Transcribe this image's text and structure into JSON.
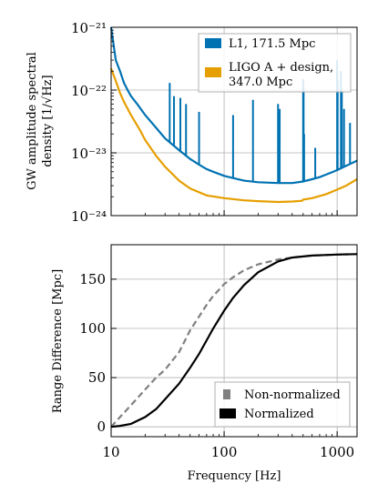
{
  "chart_data": [
    {
      "type": "line",
      "xlabel": "",
      "ylabel_lines": [
        "GW amplitude spectral",
        "density [1/√Hz]"
      ],
      "xscale": "log",
      "yscale": "log",
      "xlim": [
        10,
        1500
      ],
      "ylim": [
        1e-24,
        1e-21
      ],
      "grid": true,
      "legend_placement": "top-right",
      "y_ticks": [
        1e-24,
        1e-23,
        1e-22,
        1e-21
      ],
      "y_tick_labels": [
        "10⁻²⁴",
        "10⁻²³",
        "10⁻²²",
        "10⁻²¹"
      ],
      "series": [
        {
          "name": "L1, 171.5 Mpc",
          "color": "#0072b2",
          "x": [
            10,
            11,
            12,
            13,
            14,
            15,
            17,
            20,
            25,
            30,
            40,
            50,
            60,
            70,
            80,
            100,
            150,
            200,
            300,
            400,
            500,
            600,
            700,
            800,
            1000,
            1200,
            1500
          ],
          "y": [
            1e-21,
            3e-22,
            2e-22,
            1.3e-22,
            1e-22,
            8e-23,
            6e-23,
            4e-23,
            2.5e-23,
            1.7e-23,
            1.1e-23,
            8e-24,
            6.5e-24,
            5.5e-24,
            5e-24,
            4.3e-24,
            3.6e-24,
            3.4e-24,
            3.3e-24,
            3.3e-24,
            3.5e-24,
            3.8e-24,
            4.1e-24,
            4.5e-24,
            5.3e-24,
            6.2e-24,
            7.5e-24
          ],
          "lines": [
            [
              33,
              1.3e-22
            ],
            [
              36,
              8e-23
            ],
            [
              41,
              7.5e-23
            ],
            [
              46,
              6e-23
            ],
            [
              60,
              4.5e-23
            ],
            [
              120,
              4e-23
            ],
            [
              180,
              7e-23
            ],
            [
              300,
              6e-23
            ],
            [
              310,
              5e-23
            ],
            [
              500,
              1.5e-22
            ],
            [
              505,
              1.1e-22
            ],
            [
              510,
              2e-23
            ],
            [
              640,
              1.2e-23
            ],
            [
              1000,
              3e-22
            ],
            [
              1010,
              1.5e-22
            ],
            [
              1080,
              2e-22
            ],
            [
              1100,
              1e-22
            ],
            [
              1150,
              5e-23
            ],
            [
              1300,
              3e-23
            ]
          ]
        },
        {
          "name": "LIGO A + design,",
          "name_line2": "347.0 Mpc",
          "color": "#e69f00",
          "x": [
            10,
            11,
            12,
            13,
            15,
            18,
            20,
            25,
            30,
            40,
            50,
            70,
            100,
            150,
            200,
            300,
            400,
            490,
            500,
            600,
            800,
            1000,
            1200,
            1500
          ],
          "y": [
            2.2e-22,
            1.4e-22,
            9e-23,
            6.5e-23,
            4e-23,
            2.3e-23,
            1.6e-23,
            9e-24,
            6e-24,
            3.6e-24,
            2.7e-24,
            2.1e-24,
            1.9e-24,
            1.75e-24,
            1.7e-24,
            1.65e-24,
            1.68e-24,
            1.72e-24,
            1.8e-24,
            1.9e-24,
            2.2e-24,
            2.6e-24,
            3e-24,
            3.8e-24
          ]
        }
      ]
    },
    {
      "type": "line",
      "xlabel": "Frequency [Hz]",
      "ylabel": "Range Difference [Mpc]",
      "xscale": "log",
      "xlim": [
        10,
        1500
      ],
      "ylim": [
        -10,
        185
      ],
      "grid": true,
      "legend_placement": "bottom-right",
      "x_ticks": [
        10,
        100,
        1000
      ],
      "x_tick_labels": [
        "10",
        "100",
        "1000"
      ],
      "y_ticks": [
        0,
        50,
        100,
        150
      ],
      "y_tick_labels": [
        "0",
        "50",
        "100",
        "150"
      ],
      "series": [
        {
          "name": "Non-normalized",
          "color": "#808080",
          "dashed": true,
          "x": [
            10,
            12,
            15,
            20,
            25,
            30,
            40,
            50,
            60,
            70,
            80,
            100,
            120,
            150,
            200,
            300,
            400,
            600,
            1000,
            1500
          ],
          "y": [
            0,
            10,
            22,
            38,
            50,
            58,
            76,
            98,
            112,
            124,
            133,
            145,
            152,
            159,
            165,
            170,
            172,
            174,
            175,
            175.5
          ]
        },
        {
          "name": "Normalized",
          "color": "#000000",
          "dashed": false,
          "x": [
            10,
            12,
            15,
            20,
            25,
            30,
            40,
            50,
            60,
            70,
            80,
            100,
            120,
            150,
            200,
            300,
            400,
            600,
            1000,
            1500
          ],
          "y": [
            0,
            1,
            3,
            10,
            18,
            28,
            44,
            60,
            74,
            88,
            100,
            118,
            131,
            144,
            157,
            168,
            172,
            174,
            175,
            175.5
          ]
        }
      ]
    }
  ]
}
